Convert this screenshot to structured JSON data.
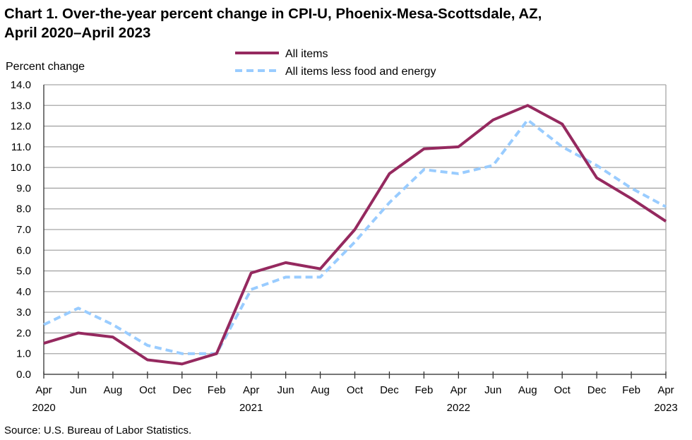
{
  "chart_data": {
    "type": "line",
    "title_line1": "Chart 1. Over-the-year percent change in CPI-U, Phoenix-Mesa-Scottsdale,  AZ,",
    "title_line2": "April 2020–April 2023",
    "ylabel": "Percent change",
    "xlabel": "",
    "ylim": [
      0,
      14
    ],
    "yticks": [
      "0.0",
      "1.0",
      "2.0",
      "3.0",
      "4.0",
      "5.0",
      "6.0",
      "7.0",
      "8.0",
      "9.0",
      "10.0",
      "11.0",
      "12.0",
      "13.0",
      "14.0"
    ],
    "grid": true,
    "legend_position": "top-center",
    "categories": [
      "Apr",
      "Jun",
      "Aug",
      "Oct",
      "Dec",
      "Feb",
      "Apr",
      "Jun",
      "Aug",
      "Oct",
      "Dec",
      "Feb",
      "Apr",
      "Jun",
      "Aug",
      "Oct",
      "Dec",
      "Feb",
      "Apr"
    ],
    "year_labels": [
      {
        "index": 0,
        "label": "2020"
      },
      {
        "index": 6,
        "label": "2021"
      },
      {
        "index": 12,
        "label": "2022"
      },
      {
        "index": 18,
        "label": "2023"
      }
    ],
    "series": [
      {
        "name": "All items",
        "color": "#95295F",
        "style": "solid",
        "values": [
          1.5,
          2.0,
          1.8,
          0.7,
          0.5,
          1.0,
          4.9,
          5.4,
          5.1,
          7.0,
          9.7,
          10.9,
          11.0,
          12.3,
          13.0,
          12.1,
          9.5,
          8.5,
          7.4
        ]
      },
      {
        "name": "All items less food and energy",
        "color": "#99CCFF",
        "style": "dashed",
        "values": [
          2.4,
          3.2,
          2.4,
          1.4,
          1.0,
          1.0,
          4.1,
          4.7,
          4.7,
          6.4,
          8.3,
          9.9,
          9.7,
          10.1,
          12.3,
          11.0,
          10.1,
          9.0,
          8.1
        ]
      }
    ],
    "source": "Source: U.S. Bureau of Labor Statistics."
  }
}
